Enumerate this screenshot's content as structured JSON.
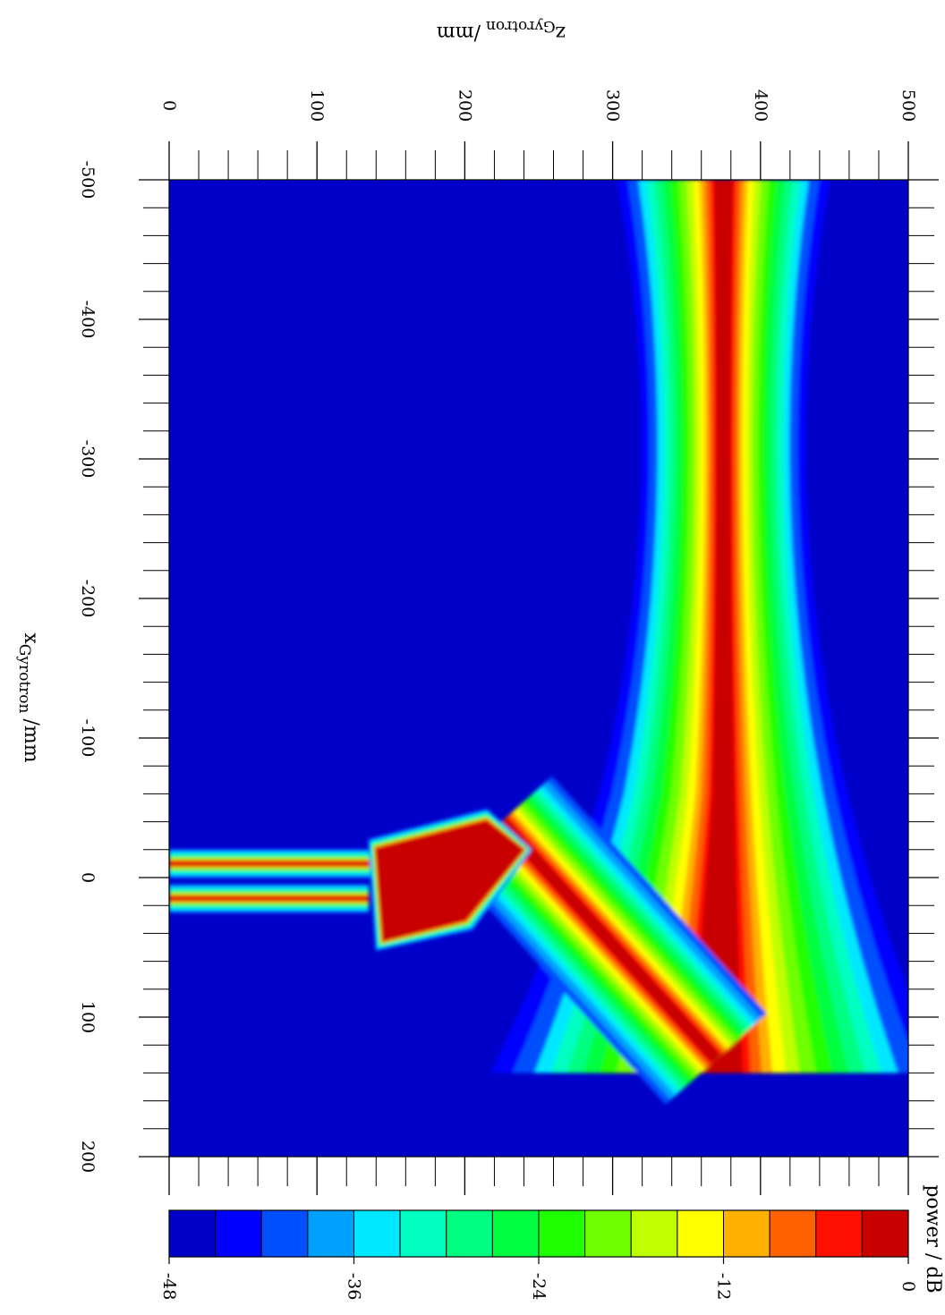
{
  "chart_data": {
    "type": "heatmap",
    "xlabel": {
      "main": "x",
      "sub": "Gyrotron",
      "unit": "/mm"
    },
    "zlabel": {
      "main": "z",
      "sub": "Gyrotron",
      "unit": "/mm"
    },
    "x_range": [
      -500,
      200
    ],
    "z_range": [
      0,
      500
    ],
    "x_ticks": [
      "-500",
      "-400",
      "-300",
      "-200",
      "-100",
      "0",
      "100",
      "200"
    ],
    "z_ticks": [
      "0",
      "100",
      "200",
      "300",
      "400",
      "500"
    ],
    "colorbar": {
      "label": "power / dB",
      "range": [
        -48,
        0
      ],
      "ticks": [
        "-48",
        "-36",
        "-24",
        "-12",
        "0"
      ],
      "levels": 16,
      "colors": [
        "#0000c8",
        "#0000ff",
        "#0050ff",
        "#00a0ff",
        "#00e8ff",
        "#00ffc0",
        "#00ff80",
        "#00ff40",
        "#20ff00",
        "#70ff00",
        "#c0ff00",
        "#ffff00",
        "#ffb000",
        "#ff6000",
        "#ff1000",
        "#c80000"
      ]
    },
    "beams": [
      {
        "name": "output-beam",
        "z_center": 375,
        "x_from": -500,
        "x_to": 140,
        "peak_db": 0
      },
      {
        "name": "diagonal-beam",
        "from": {
          "x": -40,
          "z": 225
        },
        "to": {
          "x": 130,
          "z": 370
        },
        "peak_db": -4
      },
      {
        "name": "waveguide-upper",
        "z_from": 0,
        "z_to": 160,
        "x_center": -10,
        "peak_db": -3
      },
      {
        "name": "waveguide-lower",
        "z_from": 0,
        "z_to": 135,
        "x_center": 15,
        "peak_db": -3
      }
    ],
    "grid": false
  }
}
